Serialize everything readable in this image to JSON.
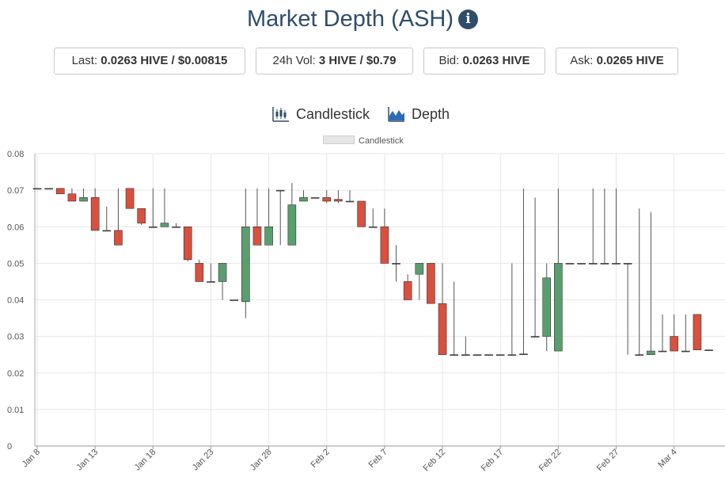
{
  "header": {
    "title": "Market Depth (ASH)"
  },
  "stats": {
    "last_label": "Last: ",
    "last_value": "0.0263 HIVE / $0.00815",
    "vol_label": "24h Vol: ",
    "vol_value": "3 HIVE / $0.79",
    "bid_label": "Bid: ",
    "bid_value": "0.0263 HIVE",
    "ask_label": "Ask: ",
    "ask_value": "0.0265 HIVE"
  },
  "tabs": {
    "candlestick": "Candlestick",
    "depth": "Depth"
  },
  "colors": {
    "up": "#5a9e6f",
    "down": "#d9503f",
    "wick": "#555555",
    "grid": "#e6e6e6",
    "title": "#2f4d6b"
  },
  "chart_data": {
    "type": "candlestick",
    "legend": [
      "Candlestick"
    ],
    "legend_position": "top-center",
    "grid": true,
    "ylim": [
      0,
      0.08
    ],
    "yticks": [
      "0",
      "0.01",
      "0.02",
      "0.03",
      "0.04",
      "0.05",
      "0.06",
      "0.07",
      "0.08"
    ],
    "xticks": [
      {
        "label": "Jan 8",
        "day": 0
      },
      {
        "label": "Jan 13",
        "day": 5
      },
      {
        "label": "Jan 18",
        "day": 10
      },
      {
        "label": "Jan 23",
        "day": 15
      },
      {
        "label": "Jan 28",
        "day": 20
      },
      {
        "label": "Feb 2",
        "day": 25
      },
      {
        "label": "Feb 7",
        "day": 30
      },
      {
        "label": "Feb 12",
        "day": 35
      },
      {
        "label": "Feb 17",
        "day": 40
      },
      {
        "label": "Feb 22",
        "day": 45
      },
      {
        "label": "Feb 27",
        "day": 50
      },
      {
        "label": "Mar 4",
        "day": 55
      }
    ],
    "candles": [
      {
        "date": "Jan 8",
        "open": 0.0705,
        "high": 0.0705,
        "low": 0.0705,
        "close": 0.0705
      },
      {
        "date": "Jan 9",
        "open": 0.0705,
        "high": 0.0705,
        "low": 0.0705,
        "close": 0.0705
      },
      {
        "date": "Jan 10",
        "open": 0.0705,
        "high": 0.0705,
        "low": 0.069,
        "close": 0.069
      },
      {
        "date": "Jan 11",
        "open": 0.069,
        "high": 0.0705,
        "low": 0.067,
        "close": 0.067
      },
      {
        "date": "Jan 12",
        "open": 0.067,
        "high": 0.0705,
        "low": 0.067,
        "close": 0.068
      },
      {
        "date": "Jan 13",
        "open": 0.068,
        "high": 0.0705,
        "low": 0.059,
        "close": 0.059
      },
      {
        "date": "Jan 14",
        "open": 0.059,
        "high": 0.0655,
        "low": 0.059,
        "close": 0.059
      },
      {
        "date": "Jan 15",
        "open": 0.059,
        "high": 0.0705,
        "low": 0.055,
        "close": 0.055
      },
      {
        "date": "Jan 16",
        "open": 0.0705,
        "high": 0.0705,
        "low": 0.065,
        "close": 0.065
      },
      {
        "date": "Jan 17",
        "open": 0.065,
        "high": 0.065,
        "low": 0.0605,
        "close": 0.061
      },
      {
        "date": "Jan 18",
        "open": 0.06,
        "high": 0.0705,
        "low": 0.06,
        "close": 0.06
      },
      {
        "date": "Jan 19",
        "open": 0.06,
        "high": 0.0705,
        "low": 0.06,
        "close": 0.061
      },
      {
        "date": "Jan 20",
        "open": 0.06,
        "high": 0.061,
        "low": 0.06,
        "close": 0.06
      },
      {
        "date": "Jan 21",
        "open": 0.06,
        "high": 0.06,
        "low": 0.0505,
        "close": 0.051
      },
      {
        "date": "Jan 22",
        "open": 0.05,
        "high": 0.051,
        "low": 0.045,
        "close": 0.045
      },
      {
        "date": "Jan 23",
        "open": 0.045,
        "high": 0.05,
        "low": 0.045,
        "close": 0.045
      },
      {
        "date": "Jan 24",
        "open": 0.045,
        "high": 0.05,
        "low": 0.04,
        "close": 0.05
      },
      {
        "date": "Jan 25",
        "open": 0.04,
        "high": 0.04,
        "low": 0.04,
        "close": 0.04
      },
      {
        "date": "Jan 26",
        "open": 0.0395,
        "high": 0.0705,
        "low": 0.035,
        "close": 0.06
      },
      {
        "date": "Jan 27",
        "open": 0.06,
        "high": 0.0705,
        "low": 0.055,
        "close": 0.055
      },
      {
        "date": "Jan 28",
        "open": 0.055,
        "high": 0.0705,
        "low": 0.055,
        "close": 0.06
      },
      {
        "date": "Jan 29",
        "open": 0.07,
        "high": 0.07,
        "low": 0.055,
        "close": 0.07
      },
      {
        "date": "Jan 30",
        "open": 0.055,
        "high": 0.072,
        "low": 0.055,
        "close": 0.066
      },
      {
        "date": "Jan 31",
        "open": 0.067,
        "high": 0.07,
        "low": 0.067,
        "close": 0.068
      },
      {
        "date": "Feb 1",
        "open": 0.068,
        "high": 0.068,
        "low": 0.068,
        "close": 0.068
      },
      {
        "date": "Feb 2",
        "open": 0.068,
        "high": 0.07,
        "low": 0.0665,
        "close": 0.067
      },
      {
        "date": "Feb 3",
        "open": 0.0675,
        "high": 0.07,
        "low": 0.0665,
        "close": 0.067
      },
      {
        "date": "Feb 4",
        "open": 0.067,
        "high": 0.07,
        "low": 0.067,
        "close": 0.067
      },
      {
        "date": "Feb 5",
        "open": 0.067,
        "high": 0.067,
        "low": 0.06,
        "close": 0.06
      },
      {
        "date": "Feb 6",
        "open": 0.06,
        "high": 0.065,
        "low": 0.06,
        "close": 0.06
      },
      {
        "date": "Feb 7",
        "open": 0.06,
        "high": 0.065,
        "low": 0.05,
        "close": 0.05
      },
      {
        "date": "Feb 8",
        "open": 0.05,
        "high": 0.055,
        "low": 0.045,
        "close": 0.05
      },
      {
        "date": "Feb 9",
        "open": 0.045,
        "high": 0.047,
        "low": 0.04,
        "close": 0.04
      },
      {
        "date": "Feb 10",
        "open": 0.047,
        "high": 0.05,
        "low": 0.04,
        "close": 0.05
      },
      {
        "date": "Feb 11",
        "open": 0.05,
        "high": 0.05,
        "low": 0.039,
        "close": 0.039
      },
      {
        "date": "Feb 12",
        "open": 0.039,
        "high": 0.05,
        "low": 0.025,
        "close": 0.025
      },
      {
        "date": "Feb 13",
        "open": 0.025,
        "high": 0.045,
        "low": 0.025,
        "close": 0.025
      },
      {
        "date": "Feb 14",
        "open": 0.025,
        "high": 0.03,
        "low": 0.025,
        "close": 0.025
      },
      {
        "date": "Feb 15",
        "open": 0.025,
        "high": 0.025,
        "low": 0.025,
        "close": 0.025
      },
      {
        "date": "Feb 16",
        "open": 0.025,
        "high": 0.025,
        "low": 0.025,
        "close": 0.025
      },
      {
        "date": "Feb 17",
        "open": 0.025,
        "high": 0.025,
        "low": 0.025,
        "close": 0.025
      },
      {
        "date": "Feb 18",
        "open": 0.025,
        "high": 0.05,
        "low": 0.025,
        "close": 0.025
      },
      {
        "date": "Feb 19",
        "open": 0.025,
        "high": 0.0705,
        "low": 0.025,
        "close": 0.0252
      },
      {
        "date": "Feb 20",
        "open": 0.03,
        "high": 0.068,
        "low": 0.03,
        "close": 0.03
      },
      {
        "date": "Feb 21",
        "open": 0.03,
        "high": 0.05,
        "low": 0.026,
        "close": 0.046
      },
      {
        "date": "Feb 22",
        "open": 0.026,
        "high": 0.0705,
        "low": 0.026,
        "close": 0.05
      },
      {
        "date": "Feb 23",
        "open": 0.05,
        "high": 0.05,
        "low": 0.05,
        "close": 0.05
      },
      {
        "date": "Feb 24",
        "open": 0.05,
        "high": 0.05,
        "low": 0.05,
        "close": 0.05
      },
      {
        "date": "Feb 25",
        "open": 0.05,
        "high": 0.0705,
        "low": 0.05,
        "close": 0.05
      },
      {
        "date": "Feb 26",
        "open": 0.05,
        "high": 0.0705,
        "low": 0.05,
        "close": 0.05
      },
      {
        "date": "Feb 27",
        "open": 0.05,
        "high": 0.0705,
        "low": 0.05,
        "close": 0.05
      },
      {
        "date": "Feb 28",
        "open": 0.05,
        "high": 0.05,
        "low": 0.025,
        "close": 0.05
      },
      {
        "date": "Mar 1",
        "open": 0.025,
        "high": 0.065,
        "low": 0.025,
        "close": 0.025
      },
      {
        "date": "Mar 2",
        "open": 0.025,
        "high": 0.064,
        "low": 0.025,
        "close": 0.026
      },
      {
        "date": "Mar 3",
        "open": 0.026,
        "high": 0.036,
        "low": 0.026,
        "close": 0.026
      },
      {
        "date": "Mar 4",
        "open": 0.03,
        "high": 0.036,
        "low": 0.026,
        "close": 0.026
      },
      {
        "date": "Mar 5",
        "open": 0.026,
        "high": 0.036,
        "low": 0.026,
        "close": 0.026
      },
      {
        "date": "Mar 6",
        "open": 0.036,
        "high": 0.036,
        "low": 0.0263,
        "close": 0.0263
      },
      {
        "date": "Mar 7",
        "open": 0.0263,
        "high": 0.0263,
        "low": 0.0263,
        "close": 0.0263
      }
    ]
  }
}
